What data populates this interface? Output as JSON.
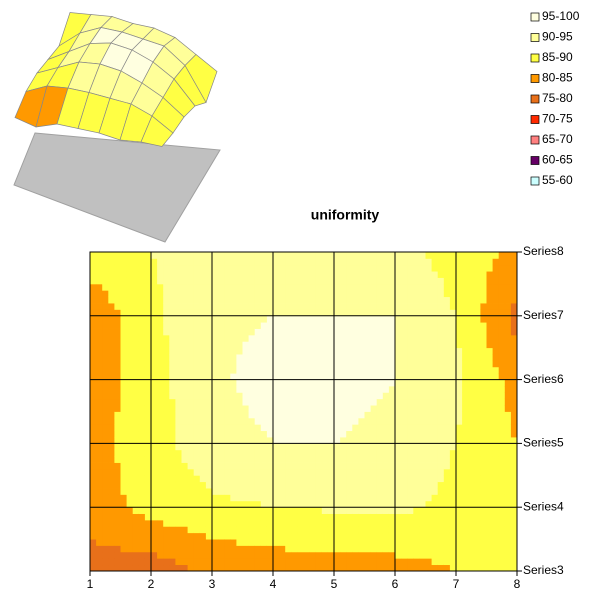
{
  "chart_data": {
    "type": "contour",
    "title": "uniformity",
    "categories": [
      "1",
      "2",
      "3",
      "4",
      "5",
      "6",
      "7",
      "8"
    ],
    "series": [
      {
        "name": "Series3",
        "values": [
          78,
          77,
          81,
          82,
          83,
          83,
          85,
          86
        ]
      },
      {
        "name": "Series4",
        "values": [
          82,
          87,
          89,
          90,
          90.5,
          91,
          89,
          85
        ]
      },
      {
        "name": "Series5",
        "values": [
          83,
          88,
          93,
          95,
          95,
          93,
          90,
          85
        ]
      },
      {
        "name": "Series6",
        "values": [
          82,
          88,
          94,
          97,
          97,
          95,
          91,
          83
        ]
      },
      {
        "name": "Series7",
        "values": [
          81,
          89,
          94,
          95,
          95,
          95,
          90,
          78
        ]
      },
      {
        "name": "Series8",
        "values": [
          88,
          90,
          92,
          92,
          93,
          92,
          88,
          84
        ]
      }
    ],
    "zlim": [
      55,
      100
    ],
    "zticks": [
      55,
      60,
      65,
      70,
      75,
      80,
      85,
      90,
      95,
      100
    ],
    "bands": [
      {
        "label": "55-60",
        "color": "#ccffff"
      },
      {
        "label": "60-65",
        "color": "#660066"
      },
      {
        "label": "65-70",
        "color": "#ff8080"
      },
      {
        "label": "70-75",
        "color": "#ff2a00"
      },
      {
        "label": "75-80",
        "color": "#e8701a"
      },
      {
        "label": "80-85",
        "color": "#ff9900"
      },
      {
        "label": "85-90",
        "color": "#ffff44"
      },
      {
        "label": "90-95",
        "color": "#ffff99"
      },
      {
        "label": "95-100",
        "color": "#ffffe0"
      }
    ],
    "grid": true
  }
}
